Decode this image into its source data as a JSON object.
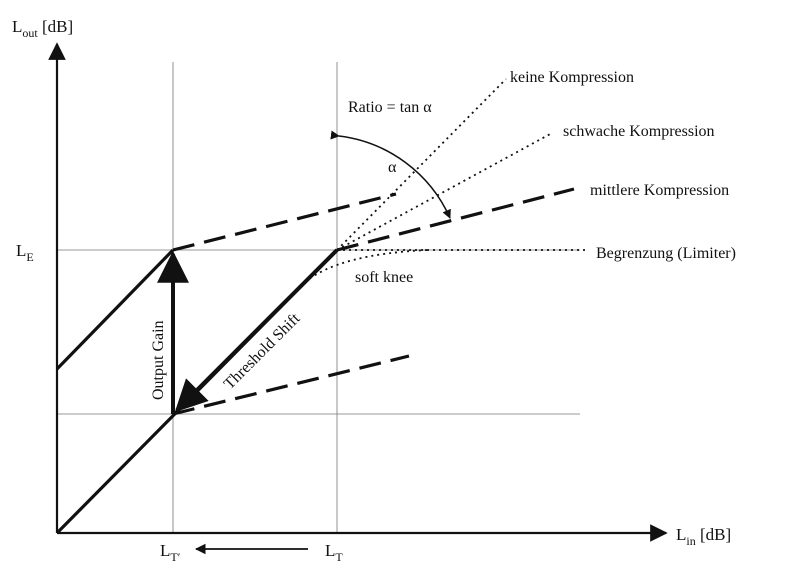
{
  "axes": {
    "y_label_main": "L",
    "y_label_sub": "out",
    "y_label_unit": " [dB]",
    "x_label_main": "L",
    "x_label_sub": "in",
    "x_label_unit": " [dB]",
    "y_tick_main": "L",
    "y_tick_sub": "E",
    "x_tick1_main": "L",
    "x_tick1_sub": "T′",
    "x_tick2_main": "L",
    "x_tick2_sub": "T"
  },
  "curves": {
    "keine": "keine Kompression",
    "schwache": "schwache Kompression",
    "mittlere": "mittlere Kompression",
    "limiter": "Begrenzung (Limiter)"
  },
  "annotations": {
    "ratio": "Ratio = tan α",
    "alpha": "α",
    "soft_knee": "soft knee",
    "output_gain": "Output Gain",
    "threshold_shift": "Threshold Shift"
  }
}
